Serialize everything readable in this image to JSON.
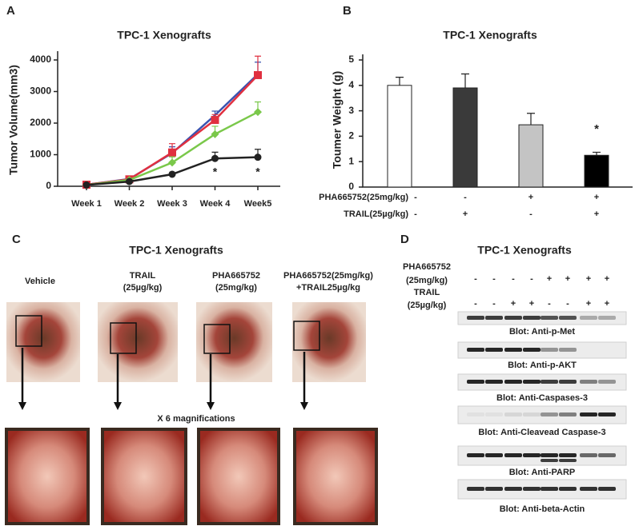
{
  "chart_data": [
    {
      "type": "line",
      "panel_label": "A",
      "title": "TPC-1 Xenografts",
      "y_label": "Tumor Volume(mm3)",
      "categories": [
        "Week 1",
        "Week 2",
        "Week 3",
        "Week 4",
        "Week5"
      ],
      "series": [
        {
          "color": "#3a53b0",
          "marker": "none",
          "values": [
            50,
            230,
            1050,
            2250,
            3550
          ],
          "errors": [
            20,
            40,
            200,
            130,
            380
          ]
        },
        {
          "color": "#e03040",
          "marker": "square",
          "values": [
            50,
            220,
            1070,
            2100,
            3520
          ],
          "errors": [
            30,
            40,
            280,
            170,
            600
          ]
        },
        {
          "color": "#7ac84a",
          "marker": "diamond",
          "values": [
            40,
            200,
            750,
            1650,
            2350
          ],
          "errors": [
            20,
            30,
            180,
            250,
            320
          ]
        },
        {
          "color": "#222222",
          "marker": "circle",
          "values": [
            40,
            150,
            380,
            880,
            920
          ],
          "errors": [
            20,
            30,
            40,
            200,
            250
          ]
        }
      ],
      "ylim": [
        0,
        4000
      ],
      "yticks": [
        0,
        1000,
        2000,
        3000,
        4000
      ],
      "annotations": [
        "*",
        "*"
      ]
    },
    {
      "type": "bar",
      "panel_label": "B",
      "title": "TPC-1 Xenografts",
      "y_label": "Toumer Weight (g)",
      "categories": [
        null,
        null,
        null,
        null
      ],
      "values": [
        4.0,
        3.9,
        2.45,
        1.25
      ],
      "errors": [
        0.32,
        0.55,
        0.45,
        0.12
      ],
      "colors": [
        "#ffffff",
        "#3a3a3a",
        "#c4c4c4",
        "#000000"
      ],
      "ylim": [
        0,
        5
      ],
      "yticks": [
        0,
        1,
        2,
        3,
        4,
        5
      ],
      "annotations": [
        "*"
      ],
      "treatment_rows": [
        {
          "label": "PHA665752(25mg/kg)",
          "signs": [
            "-",
            "-",
            "+",
            "+"
          ]
        },
        {
          "label": "TRAIL(25µg/kg)",
          "signs": [
            "-",
            "+",
            "-",
            "+"
          ]
        }
      ]
    }
  ],
  "panel_c": {
    "label": "C",
    "title": "TPC-1 Xenografts",
    "columns": [
      [
        "Vehicle"
      ],
      [
        "TRAIL",
        "(25µg/kg)"
      ],
      [
        "PHA665752",
        "(25mg/kg)"
      ],
      [
        "PHA665752(25mg/kg)",
        "+TRAIL25µg/kg"
      ]
    ],
    "magnification": "X 6 magnifications"
  },
  "panel_d": {
    "label": "D",
    "title": "TPC-1 Xenografts",
    "pha_label": [
      "PHA665752",
      "(25mg/kg)"
    ],
    "pha_signs": [
      "-",
      "-",
      "-",
      "-",
      "+",
      "+",
      "+",
      "+"
    ],
    "trail_label": [
      "TRAIL",
      "(25µg/kg)"
    ],
    "trail_signs": [
      "-",
      "-",
      "+",
      "+",
      "-",
      "-",
      "+",
      "+"
    ],
    "blots": [
      "Blot: Anti-p-Met",
      "Blot: Anti-p-AKT",
      "Blot: Anti-Caspases-3",
      "Blot: Anti-Cleavead Caspase-3",
      "Blot: Anti-PARP",
      "Blot: Anti-beta-Actin"
    ]
  }
}
